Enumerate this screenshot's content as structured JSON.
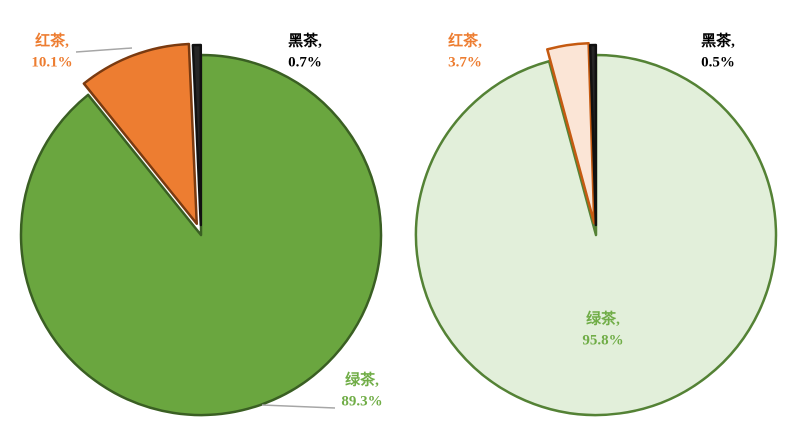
{
  "chart_data": [
    {
      "type": "pie",
      "categories": [
        "绿茶,",
        "红茶,",
        "黑茶,"
      ],
      "values": [
        89.3,
        10.1,
        0.7
      ],
      "value_labels": [
        "89.3%",
        "10.1%",
        "0.7%"
      ],
      "colors": [
        "#6aa63f",
        "#ed7d31",
        "#262626"
      ],
      "edge_colors": [
        "#3a5f23",
        "#7a3a10",
        "#111111"
      ],
      "label_colors": [
        "#70ad47",
        "#ed7d31",
        "#000000"
      ]
    },
    {
      "type": "pie",
      "categories": [
        "绿茶,",
        "红茶,",
        "黑茶,"
      ],
      "values": [
        95.8,
        3.7,
        0.5
      ],
      "value_labels": [
        "95.8%",
        "3.7%",
        "0.5%"
      ],
      "colors": [
        "#e2efda",
        "#fbe5d6",
        "#262626"
      ],
      "edge_colors": [
        "#548235",
        "#c55a11",
        "#111111"
      ],
      "label_colors": [
        "#70ad47",
        "#ed7d31",
        "#000000"
      ]
    }
  ]
}
